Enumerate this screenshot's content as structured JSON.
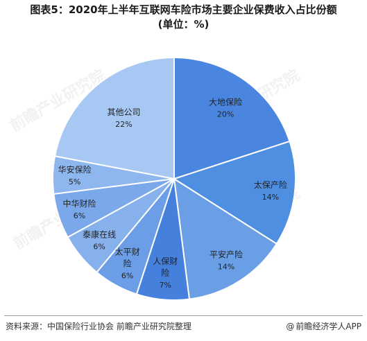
{
  "header": {
    "title_line1": "图表5：2020年上半年互联网车险市场主要企业保费收入占比份额",
    "title_line2": "(单位：%)"
  },
  "chart_data": {
    "type": "pie",
    "title": "图表5：2020年上半年互联网车险市场主要企业保费收入占比份额",
    "subtitle": "(单位：%)",
    "unit": "%",
    "slices": [
      {
        "label": "大地保险",
        "label_lines": [
          "大地保险"
        ],
        "value": 20,
        "value_text": "20%",
        "color": "#4a86df"
      },
      {
        "label": "太保产险",
        "label_lines": [
          "太保产险"
        ],
        "value": 14,
        "value_text": "14%",
        "color": "#4f8fe2"
      },
      {
        "label": "平安产险",
        "label_lines": [
          "平安产险"
        ],
        "value": 14,
        "value_text": "14%",
        "color": "#6a9fe6"
      },
      {
        "label": "人保财险",
        "label_lines": [
          "人保财",
          "险"
        ],
        "value": 7,
        "value_text": "7%",
        "color": "#4580dc"
      },
      {
        "label": "太平财险",
        "label_lines": [
          "太平财",
          "险"
        ],
        "value": 6,
        "value_text": "6%",
        "color": "#6b9ee6"
      },
      {
        "label": "泰康在线",
        "label_lines": [
          "泰康在线"
        ],
        "value": 6,
        "value_text": "6%",
        "color": "#86b1ec"
      },
      {
        "label": "中华财险",
        "label_lines": [
          "中华财险"
        ],
        "value": 6,
        "value_text": "6%",
        "color": "#7aa8ea"
      },
      {
        "label": "华安保险",
        "label_lines": [
          "华安保险"
        ],
        "value": 5,
        "value_text": "5%",
        "color": "#8db7ee"
      },
      {
        "label": "其他公司",
        "label_lines": [
          "其他公司"
        ],
        "value": 22,
        "value_text": "22%",
        "color": "#a8c8f4"
      }
    ],
    "start_angle_deg": 0,
    "direction": "clockwise",
    "legend": "none"
  },
  "watermark": {
    "text": "前瞻产业研究院"
  },
  "footer": {
    "source": "资料来源：中国保险行业协会 前瞻产业研究院整理",
    "brand": "前瞻经济学人APP",
    "brand_icon": "at-icon"
  }
}
